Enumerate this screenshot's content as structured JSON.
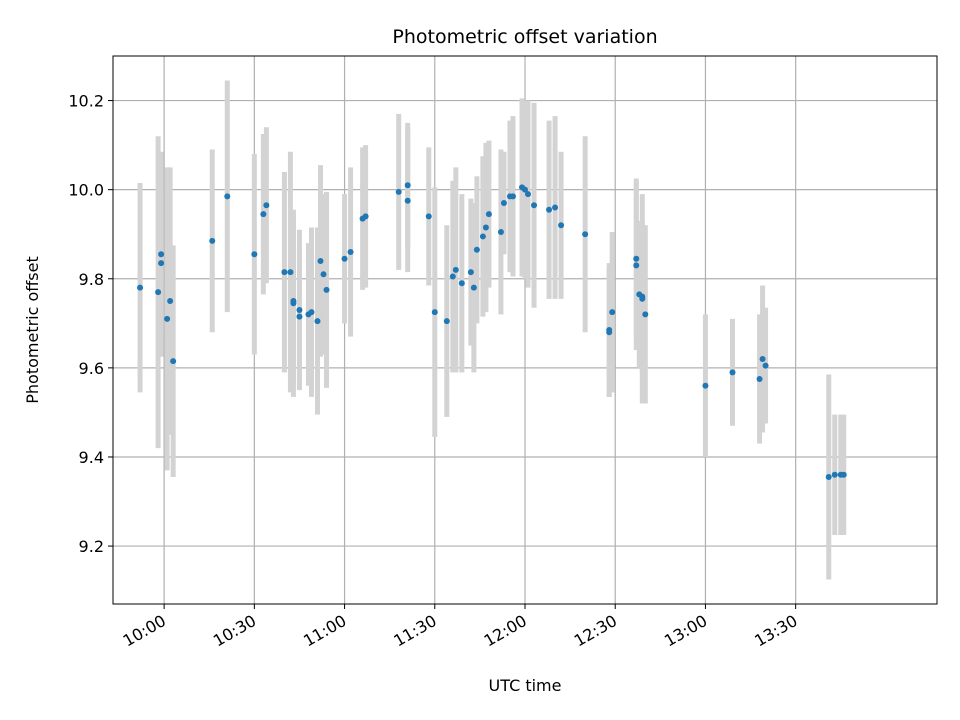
{
  "chart_data": {
    "type": "scatter",
    "title": "Photometric offset variation",
    "xlabel": "UTC time",
    "ylabel": "Photometric offset",
    "x_tick_labels": [
      "10:00",
      "10:30",
      "11:00",
      "11:30",
      "12:00",
      "12:30",
      "13:00",
      "13:30"
    ],
    "y_tick_labels": [
      "9.2",
      "9.4",
      "9.6",
      "9.8",
      "10.0",
      "10.2"
    ],
    "x_ticks": [
      "10:00",
      "10:30",
      "11:00",
      "11:30",
      "12:00",
      "12:30",
      "13:00",
      "13:30"
    ],
    "y_ticks": [
      9.2,
      9.4,
      9.6,
      9.8,
      10.0,
      10.2
    ],
    "xlim": [
      "09:43",
      "14:17"
    ],
    "ylim": [
      9.07,
      10.3
    ],
    "grid": true,
    "colors": {
      "points": "#1f77b4",
      "errorbars": "#d3d3d3",
      "grid": "#b0b0b0"
    },
    "series": [
      {
        "x": [
          "09:52",
          "09:58",
          "09:59",
          "09:59",
          "10:01",
          "10:02",
          "10:03",
          "10:16",
          "10:21",
          "10:30",
          "10:33",
          "10:34",
          "10:40",
          "10:42",
          "10:43",
          "10:43",
          "10:45",
          "10:45",
          "10:48",
          "10:49",
          "10:51",
          "10:52",
          "10:53",
          "10:54",
          "11:00",
          "11:02",
          "11:06",
          "11:07",
          "11:18",
          "11:21",
          "11:21",
          "11:28",
          "11:30",
          "11:34",
          "11:36",
          "11:37",
          "11:39",
          "11:42",
          "11:43",
          "11:44",
          "11:46",
          "11:47",
          "11:48",
          "11:52",
          "11:53",
          "11:55",
          "11:56",
          "11:59",
          "12:00",
          "12:01",
          "12:03",
          "12:08",
          "12:10",
          "12:12",
          "12:20",
          "12:28",
          "12:28",
          "12:29",
          "12:37",
          "12:37",
          "12:38",
          "12:39",
          "12:39",
          "12:40",
          "13:00",
          "13:09",
          "13:18",
          "13:19",
          "13:20",
          "13:41",
          "13:43",
          "13:45",
          "13:46"
        ],
        "y": [
          9.78,
          9.77,
          9.835,
          9.855,
          9.71,
          9.75,
          9.615,
          9.885,
          9.985,
          9.855,
          9.945,
          9.965,
          9.815,
          9.815,
          9.745,
          9.75,
          9.715,
          9.73,
          9.72,
          9.725,
          9.705,
          9.84,
          9.81,
          9.775,
          9.845,
          9.86,
          9.935,
          9.94,
          9.995,
          10.01,
          9.975,
          9.94,
          9.725,
          9.705,
          9.805,
          9.82,
          9.79,
          9.815,
          9.78,
          9.865,
          9.895,
          9.915,
          9.945,
          9.905,
          9.97,
          9.985,
          9.985,
          10.005,
          10.0,
          9.99,
          9.965,
          9.955,
          9.96,
          9.92,
          9.9,
          9.685,
          9.68,
          9.725,
          9.83,
          9.845,
          9.765,
          9.76,
          9.755,
          9.72,
          9.56,
          9.59,
          9.575,
          9.62,
          9.605,
          9.355,
          9.36,
          9.36,
          9.36
        ],
        "yerr": [
          0.235,
          0.35,
          0.165,
          0.23,
          0.34,
          0.3,
          0.26,
          0.205,
          0.26,
          0.225,
          0.18,
          0.175,
          0.225,
          0.27,
          0.21,
          0.195,
          0.16,
          0.18,
          0.16,
          0.19,
          0.21,
          0.215,
          0.18,
          0.22,
          0.145,
          0.19,
          0.16,
          0.16,
          0.175,
          0.14,
          0.16,
          0.155,
          0.28,
          0.215,
          0.215,
          0.23,
          0.2,
          0.165,
          0.19,
          0.165,
          0.18,
          0.19,
          0.165,
          0.185,
          0.115,
          0.17,
          0.18,
          0.2,
          0.2,
          0.21,
          0.23,
          0.2,
          0.205,
          0.165,
          0.22,
          0.15,
          0.145,
          0.18,
          0.19,
          0.18,
          0.165,
          0.17,
          0.235,
          0.2,
          0.16,
          0.12,
          0.145,
          0.165,
          0.13,
          0.23,
          0.135,
          0.135,
          0.135
        ]
      }
    ]
  }
}
